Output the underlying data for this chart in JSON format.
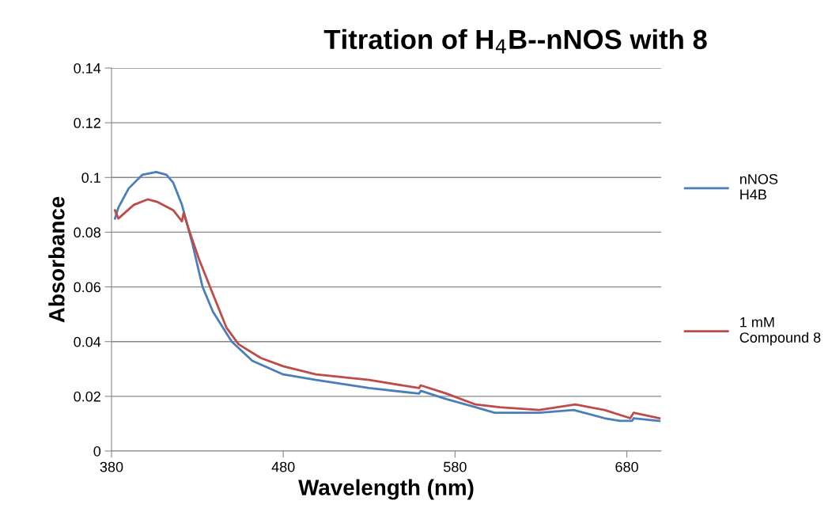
{
  "chart_data": {
    "type": "line",
    "title": "Titration of H$_{4}$B--nNOS with 8",
    "xlabel": "Wavelength (nm)",
    "ylabel": "Absorbance",
    "xlim": [
      380,
      700
    ],
    "xticks": [
      380,
      480,
      580,
      680
    ],
    "ylim": [
      0,
      0.14
    ],
    "yticks": [
      0,
      0.02,
      0.04,
      0.06,
      0.08,
      0.1,
      0.12,
      0.14
    ],
    "grid": "y",
    "legend": "right",
    "marker": "none",
    "line_style": "solid",
    "series": [
      {
        "name": "nNOS H4B",
        "color": "#4a7ebb",
        "x": [
          382,
          384,
          390,
          398,
          406,
          412,
          416,
          421,
          427,
          433,
          439,
          450,
          462,
          480,
          499,
          530,
          559,
          560,
          575,
          592,
          603,
          629,
          649,
          667,
          676,
          683,
          684,
          699
        ],
        "values": [
          0.085,
          0.089,
          0.096,
          0.101,
          0.102,
          0.101,
          0.098,
          0.09,
          0.076,
          0.06,
          0.051,
          0.04,
          0.033,
          0.028,
          0.026,
          0.023,
          0.021,
          0.022,
          0.019,
          0.016,
          0.014,
          0.014,
          0.015,
          0.012,
          0.011,
          0.011,
          0.012,
          0.011
        ]
      },
      {
        "name": "1 mM Compound 8",
        "color": "#be4b48",
        "x": [
          382,
          384,
          393,
          401,
          407,
          416,
          421,
          422,
          425,
          431,
          438,
          447,
          454,
          467,
          480,
          499,
          530,
          559,
          560,
          575,
          592,
          606,
          629,
          650,
          667,
          682,
          684,
          699
        ],
        "values": [
          0.088,
          0.085,
          0.09,
          0.092,
          0.091,
          0.088,
          0.084,
          0.087,
          0.081,
          0.07,
          0.059,
          0.045,
          0.039,
          0.034,
          0.031,
          0.028,
          0.026,
          0.023,
          0.024,
          0.021,
          0.017,
          0.016,
          0.015,
          0.017,
          0.015,
          0.012,
          0.014,
          0.012
        ]
      }
    ]
  }
}
